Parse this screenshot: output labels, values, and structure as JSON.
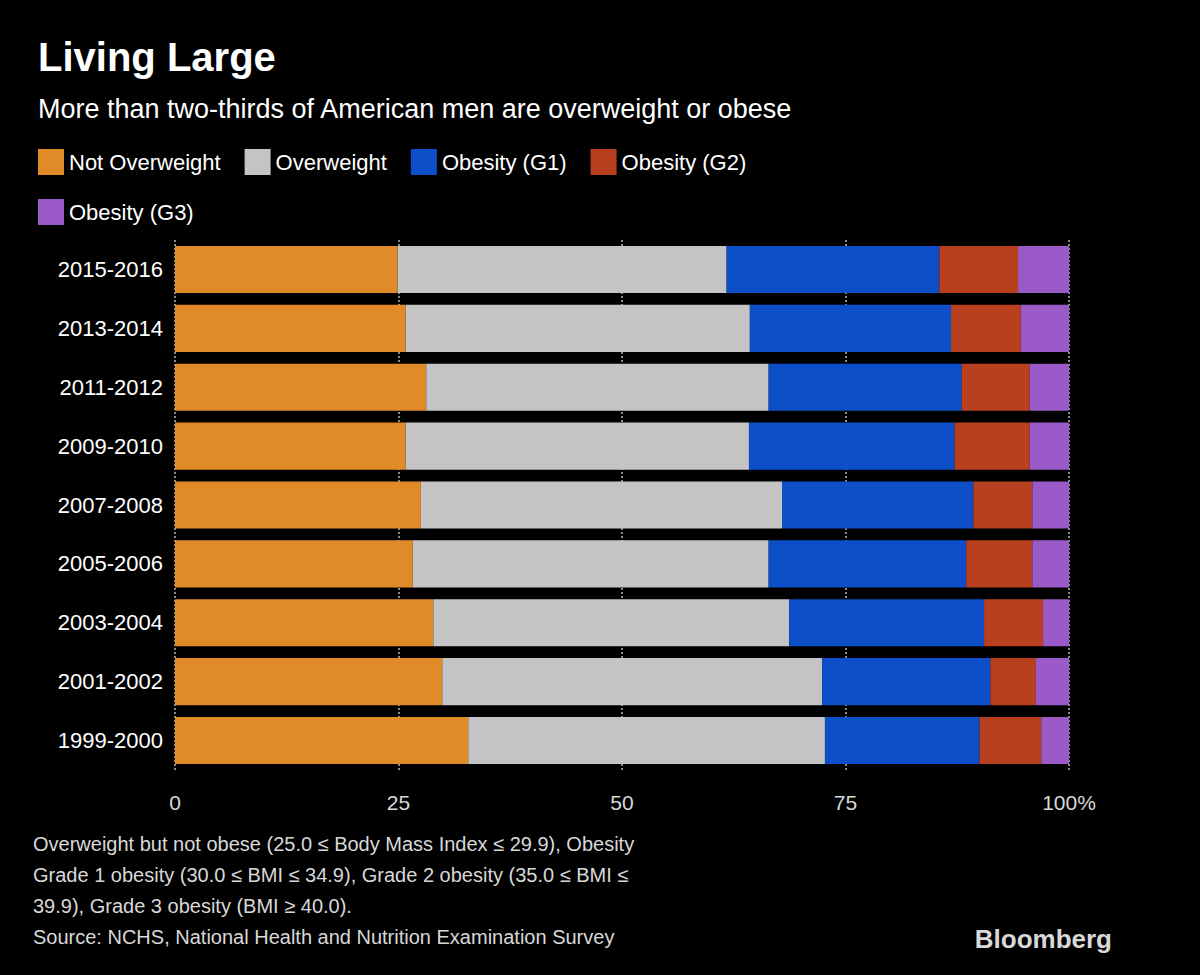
{
  "chart_data": {
    "type": "bar",
    "title": "Living Large",
    "subtitle": "More than two-thirds of American men are overweight or obese",
    "orientation": "horizontal",
    "stacked": true,
    "grid": true,
    "legend": "top-left",
    "categories": [
      "2015-2016",
      "2013-2014",
      "2011-2012",
      "2009-2010",
      "2007-2008",
      "2005-2006",
      "2003-2004",
      "2001-2002",
      "1999-2000"
    ],
    "series": [
      {
        "name": "Not Overweight",
        "color": "#e08b28",
        "values": [
          24.9,
          25.8,
          28.1,
          25.8,
          27.5,
          26.6,
          28.9,
          29.9,
          32.8
        ]
      },
      {
        "name": "Overweight",
        "color": "#c4c4c4",
        "values": [
          36.8,
          38.5,
          38.3,
          38.4,
          40.4,
          39.8,
          39.8,
          42.5,
          39.9
        ]
      },
      {
        "name": "Obesity (G1)",
        "color": "#0c4fc8",
        "values": [
          23.8,
          22.5,
          21.6,
          23.0,
          21.4,
          22.1,
          21.8,
          18.8,
          17.3
        ]
      },
      {
        "name": "Obesity (G2)",
        "color": "#b8401e",
        "values": [
          8.8,
          7.8,
          7.6,
          8.4,
          6.6,
          7.4,
          6.6,
          5.1,
          6.9
        ]
      },
      {
        "name": "Obesity (G3)",
        "color": "#9a5ac8",
        "values": [
          5.7,
          5.4,
          4.4,
          4.4,
          4.1,
          4.1,
          2.9,
          3.7,
          3.1
        ]
      }
    ],
    "xlim": [
      0,
      100
    ],
    "xticks": [
      0,
      25,
      50,
      75,
      {
        "value": 100,
        "label": "100%"
      }
    ],
    "footnote": [
      "Overweight but not obese (25.0 ≤ Body Mass Index ≤ 29.9), Obesity",
      "Grade 1 obesity (30.0 ≤ BMI ≤ 34.9), Grade 2 obesity (35.0 ≤ BMI ≤",
      "39.9), Grade 3 obesity (BMI ≥ 40.0)."
    ],
    "source": "Source: NCHS, National Health and Nutrition Examination Survey",
    "credit": "Bloomberg"
  }
}
